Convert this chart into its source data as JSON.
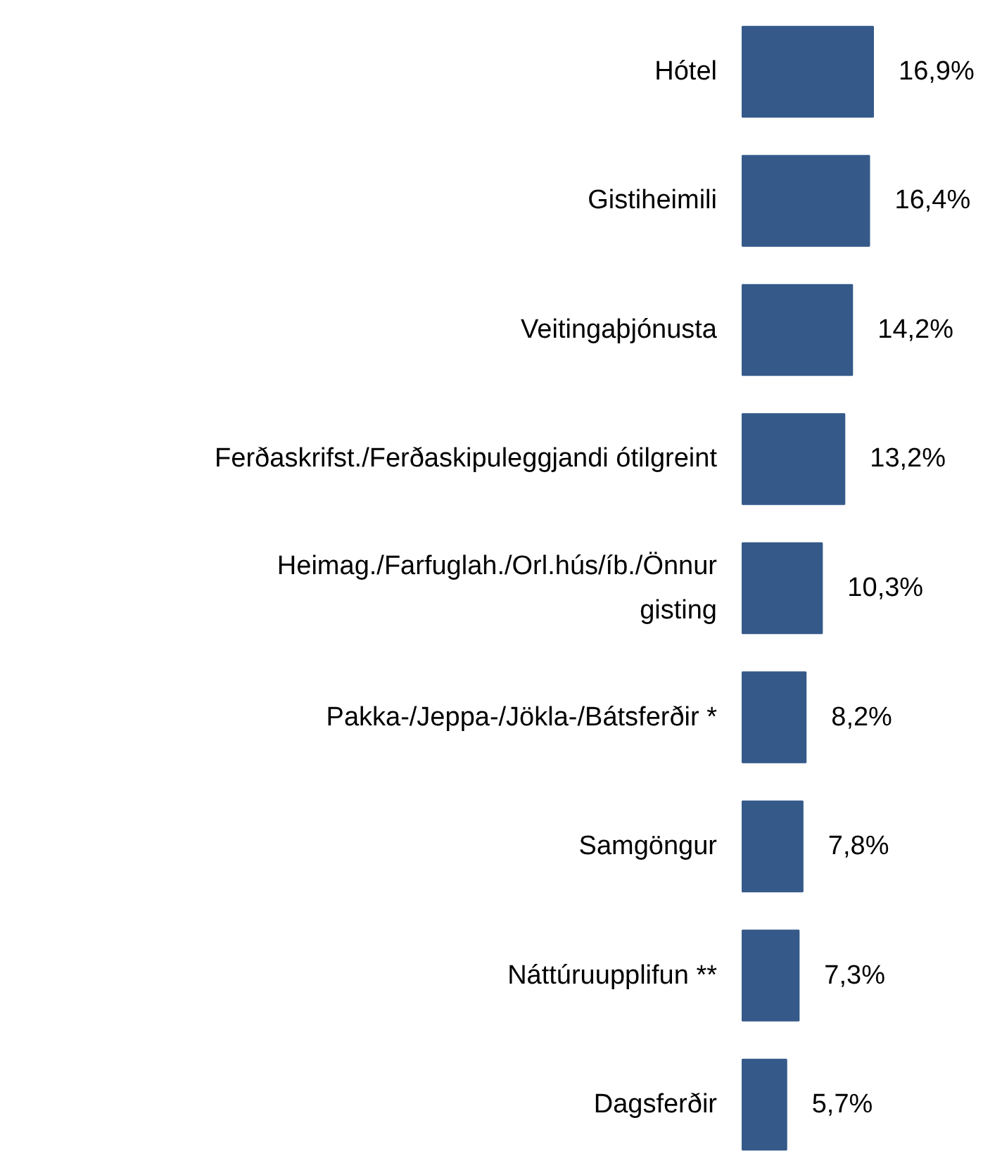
{
  "chart_data": {
    "type": "bar",
    "orientation": "horizontal",
    "categories": [
      "Hótel",
      "Gistiheimili",
      "Veitingaþjónusta",
      "Ferðaskrifst./Ferðaskipuleggjandi ótilgreint",
      "Heimag./Farfuglah./Orl.hús/íb./Önnur gisting",
      "Pakka-/Jeppa-/Jökla-/Bátsferðir *",
      "Samgöngur",
      "Náttúruupplifun **",
      "Dagsferðir"
    ],
    "values": [
      16.9,
      16.4,
      14.2,
      13.2,
      10.3,
      8.2,
      7.8,
      7.3,
      5.7
    ],
    "value_labels": [
      "16,9%",
      "16,4%",
      "14,2%",
      "13,2%",
      "10,3%",
      "8,2%",
      "7,8%",
      "7,3%",
      "5,7%"
    ],
    "color": "#355a8a"
  }
}
